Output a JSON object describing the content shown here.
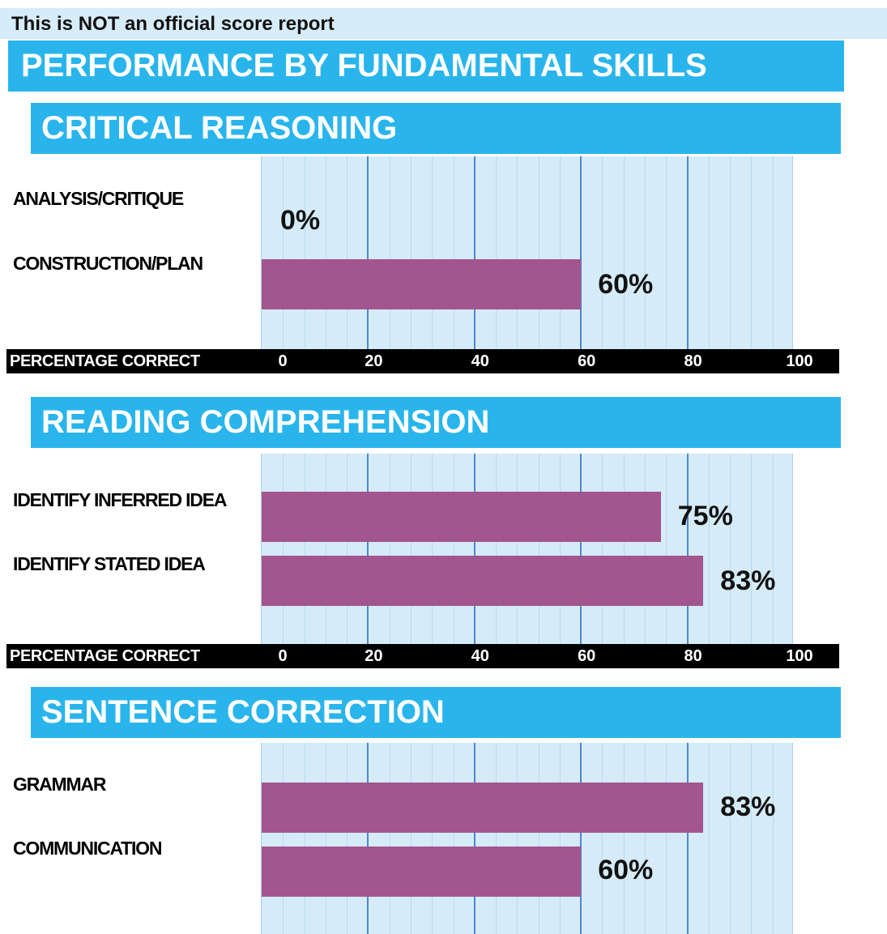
{
  "notice": "This is NOT an official score report",
  "title": "PERFORMANCE BY FUNDAMENTAL SKILLS",
  "colors": {
    "header_bg": "#29b5ec",
    "plot_bg": "#d5ecf8",
    "bar": "#a2558e",
    "major_grid": "#4f86cc",
    "axis_strip": "#000000"
  },
  "chart_data": [
    {
      "type": "bar",
      "orientation": "horizontal",
      "title": "CRITICAL REASONING",
      "categories": [
        "ANALYSIS/CRITIQUE",
        "CONSTRUCTION/PLAN"
      ],
      "values": [
        0,
        60
      ],
      "value_labels": [
        "0%",
        "60%"
      ],
      "xlabel": "PERCENTAGE CORRECT",
      "xlim": [
        0,
        100
      ],
      "xticks": [
        0,
        20,
        40,
        60,
        80,
        100
      ],
      "grid": true
    },
    {
      "type": "bar",
      "orientation": "horizontal",
      "title": "READING COMPREHENSION",
      "categories": [
        "IDENTIFY INFERRED IDEA",
        "IDENTIFY STATED IDEA"
      ],
      "values": [
        75,
        83
      ],
      "value_labels": [
        "75%",
        "83%"
      ],
      "xlabel": "PERCENTAGE CORRECT",
      "xlim": [
        0,
        100
      ],
      "xticks": [
        0,
        20,
        40,
        60,
        80,
        100
      ],
      "grid": true
    },
    {
      "type": "bar",
      "orientation": "horizontal",
      "title": "SENTENCE CORRECTION",
      "categories": [
        "GRAMMAR",
        "COMMUNICATION"
      ],
      "values": [
        83,
        60
      ],
      "value_labels": [
        "83%",
        "60%"
      ],
      "xlabel": "",
      "xlim": [
        0,
        100
      ],
      "xticks": [],
      "grid": true
    }
  ]
}
